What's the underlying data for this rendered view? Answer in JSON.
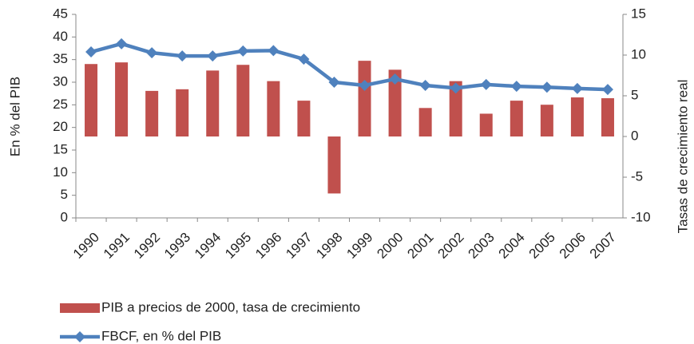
{
  "chart_data": {
    "type": "combo",
    "categories": [
      "1990",
      "1991",
      "1992",
      "1993",
      "1994",
      "1995",
      "1996",
      "1997",
      "1998",
      "1999",
      "2000",
      "2001",
      "2002",
      "2003",
      "2004",
      "2005",
      "2006",
      "2007"
    ],
    "series": [
      {
        "name": "PIB a precios de 2000, tasa de crecimiento",
        "type": "bar",
        "axis": "y2",
        "color": "#c0504d",
        "values": [
          8.9,
          9.1,
          5.6,
          5.8,
          8.1,
          8.8,
          6.8,
          4.4,
          -7.0,
          9.3,
          8.2,
          3.5,
          6.8,
          2.8,
          4.4,
          3.9,
          4.8,
          4.7
        ]
      },
      {
        "name": "FBCF, en % del PIB",
        "type": "line",
        "axis": "y",
        "color": "#4f81bd",
        "values": [
          36.7,
          38.5,
          36.5,
          35.8,
          35.8,
          36.9,
          37.0,
          35.1,
          30.0,
          29.3,
          30.7,
          29.3,
          28.7,
          29.5,
          29.1,
          28.9,
          28.6,
          28.4
        ]
      }
    ],
    "ylabel": "En % del PIB",
    "y2label": "Tasas de crecimiento real",
    "ylim": [
      0,
      45
    ],
    "yticks": [
      0,
      5,
      10,
      15,
      20,
      25,
      30,
      35,
      40,
      45
    ],
    "y2lim": [
      -10,
      15
    ],
    "y2ticks": [
      -10,
      -5,
      0,
      5,
      10,
      15
    ],
    "legend": "bottom"
  }
}
